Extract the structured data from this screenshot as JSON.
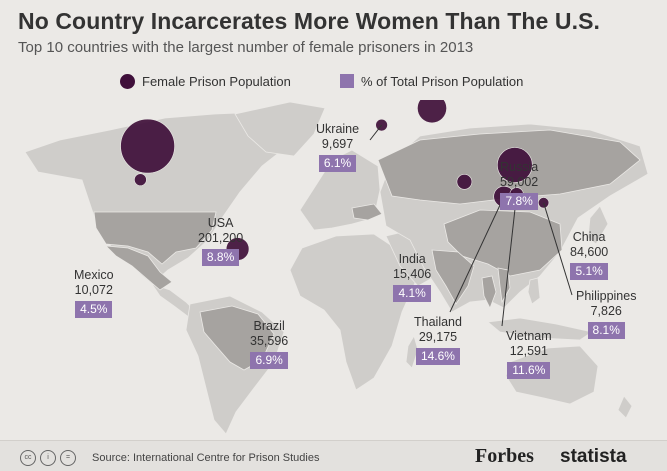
{
  "title": "No Country Incarcerates More Women Than The U.S.",
  "subtitle": "Top 10 countries with the largest number of female prisoners in 2013",
  "legend": {
    "circle_label": "Female Prison Population",
    "square_label": "% of Total Prison Population"
  },
  "colors": {
    "circle": "#3f0f3a",
    "percent_box": "#8e74ad",
    "land": "#cfcdca",
    "land_highlight": "#a6a3a0",
    "water": "#ebe9e6"
  },
  "chart_data": {
    "type": "bubble-map",
    "title": "No Country Incarcerates More Women Than The U.S.",
    "subtitle": "Top 10 countries with the largest number of female prisoners in 2013",
    "series": [
      {
        "name": "Female Prison Population"
      },
      {
        "name": "% of Total Prison Population"
      }
    ],
    "countries": [
      {
        "name": "USA",
        "female_prisoners": 201200,
        "female_prisoners_label": "201,200",
        "percent_of_total": 8.8,
        "percent_label": "8.8%",
        "lat": 39,
        "lon": -98
      },
      {
        "name": "China",
        "female_prisoners": 84600,
        "female_prisoners_label": "84,600",
        "percent_of_total": 5.1,
        "percent_label": "5.1%",
        "lat": 30,
        "lon": 106
      },
      {
        "name": "Russia",
        "female_prisoners": 59002,
        "female_prisoners_label": "59,002",
        "percent_of_total": 7.8,
        "percent_label": "7.8%",
        "lat": 57,
        "lon": 60
      },
      {
        "name": "Brazil",
        "female_prisoners": 35596,
        "female_prisoners_label": "35,596",
        "percent_of_total": 6.9,
        "percent_label": "6.9%",
        "lat": -10,
        "lon": -48
      },
      {
        "name": "Thailand",
        "female_prisoners": 29175,
        "female_prisoners_label": "29,175",
        "percent_of_total": 14.6,
        "percent_label": "14.6%",
        "lat": 15,
        "lon": 100
      },
      {
        "name": "India",
        "female_prisoners": 15406,
        "female_prisoners_label": "15,406",
        "percent_of_total": 4.1,
        "percent_label": "4.1%",
        "lat": 22,
        "lon": 78
      },
      {
        "name": "Vietnam",
        "female_prisoners": 12591,
        "female_prisoners_label": "12,591",
        "percent_of_total": 11.6,
        "percent_label": "11.6%",
        "lat": 16,
        "lon": 107
      },
      {
        "name": "Mexico",
        "female_prisoners": 10072,
        "female_prisoners_label": "10,072",
        "percent_of_total": 4.5,
        "percent_label": "4.5%",
        "lat": 23,
        "lon": -102
      },
      {
        "name": "Ukraine",
        "female_prisoners": 9697,
        "female_prisoners_label": "9,697",
        "percent_of_total": 6.1,
        "percent_label": "6.1%",
        "lat": 49,
        "lon": 32
      },
      {
        "name": "Philippines",
        "female_prisoners": 7826,
        "female_prisoners_label": "7,826",
        "percent_of_total": 8.1,
        "percent_label": "8.1%",
        "lat": 12,
        "lon": 122
      }
    ]
  },
  "footer": {
    "license_icons": [
      "cc-icon",
      "by-icon",
      "nd-icon"
    ],
    "license_icon_text": [
      "cc",
      "i",
      "="
    ],
    "source": "Source: International Centre for Prison Studies",
    "logo_forbes": "Forbes",
    "logo_statista": "statista"
  }
}
